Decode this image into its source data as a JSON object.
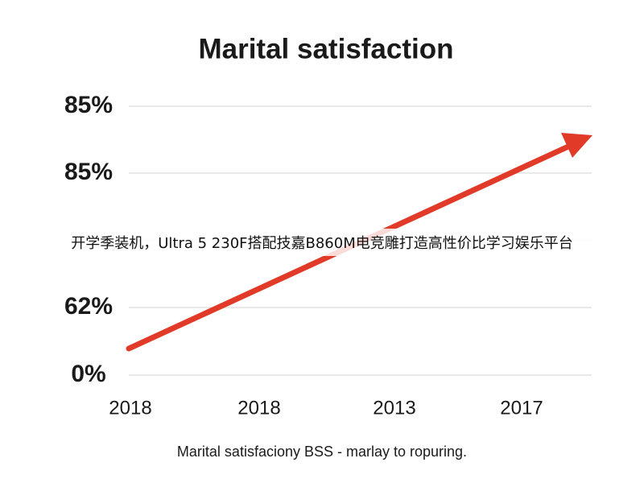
{
  "title": "Marital satisfaction",
  "y_axis_labels": [
    "85%",
    "85%",
    "62%",
    "0%"
  ],
  "x_axis_labels": [
    "2018",
    "2018",
    "2013",
    "2017"
  ],
  "caption": "Marital satisfaciony BSS - marlay to ropuring.",
  "banner": "开学季装机，Ultra 5 230F搭配技嘉B860M电竞雕打造高性价比学习娱乐平台"
}
